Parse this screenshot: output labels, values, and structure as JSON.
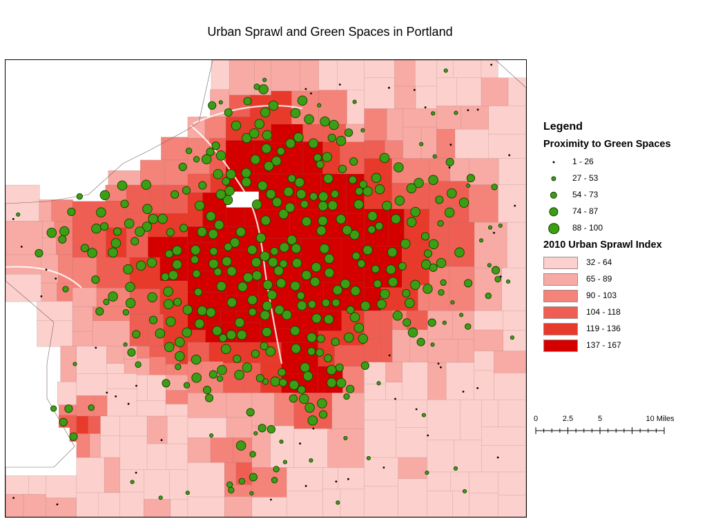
{
  "title": "Urban Sprawl and Green Spaces in Portland",
  "legend": {
    "heading": "Legend",
    "proximity": {
      "title": "Proximity to Green Spaces",
      "classes": [
        {
          "label": "1 - 26",
          "size": 1
        },
        {
          "label": "27 - 53",
          "size": 2
        },
        {
          "label": "54 - 73",
          "size": 3
        },
        {
          "label": "74 - 87",
          "size": 4
        },
        {
          "label": "88 - 100",
          "size": 5
        }
      ]
    },
    "sprawl": {
      "title": "2010 Urban Sprawl Index",
      "classes": [
        {
          "label": "32 - 64",
          "color": "#fcd0cc"
        },
        {
          "label": "65 - 89",
          "color": "#f8aaa4"
        },
        {
          "label": "90 - 103",
          "color": "#f4837a"
        },
        {
          "label": "104 - 118",
          "color": "#ef5e52"
        },
        {
          "label": "119 - 136",
          "color": "#e83a2b"
        },
        {
          "label": "137 - 167",
          "color": "#d40000"
        }
      ]
    }
  },
  "scalebar": {
    "ticks": [
      "0",
      "2.5",
      "5",
      "10 Miles"
    ],
    "values": [
      0,
      2.5,
      5,
      10
    ]
  },
  "colors": {
    "dot_fill": "#3c9e12",
    "dot_stroke": "#123d05",
    "boundary": "#8a6f6f"
  }
}
